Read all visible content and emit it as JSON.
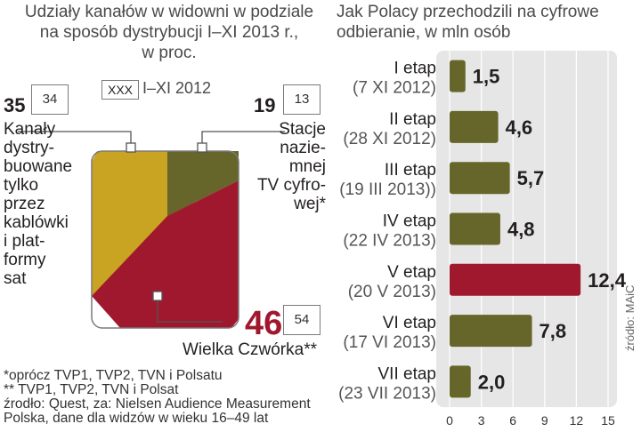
{
  "left_chart": {
    "title_lines": [
      "Udziały kanałów w widowni w podziale",
      "na sposób dystrybucji I–XI 2013 r.,",
      "w proc."
    ],
    "legend_box": "XXX",
    "legend_text": "I–XI 2012",
    "footnotes": [
      "*oprócz TVP1, TVP2, TVN i Polsatu",
      "** TVP1, TVP2, TVN i Polsat",
      "źrodło: Quest, za: Nielsen Audience Measurement",
      "Polska, dane dla widzów w wieku 16–49 lat"
    ]
  },
  "right_chart": {
    "title_lines": [
      "Jak Polacy przechodzili na cyfrowe",
      "odbieranie, w mln osób"
    ],
    "source": "źródło: MAiC"
  },
  "colors": {
    "cable": "#c9a322",
    "terrestrial": "#66652a",
    "big_four": "#a0182e",
    "bar_default": "#66652a",
    "bar_highlight": "#a0182e",
    "panel": "#e6e6e6"
  },
  "chart_data": [
    {
      "type": "pie",
      "slices": [
        {
          "key": "cable",
          "label_lines": [
            "Kanały",
            "dystry-",
            "buowane",
            "tylko",
            "przez",
            "kablówki",
            "i plat-",
            "formy",
            "sat"
          ],
          "value": 35,
          "prev": "34"
        },
        {
          "key": "terrestrial",
          "label_lines": [
            "Stacje",
            "nazie-",
            "mnej",
            "TV cyfro-",
            "wej*"
          ],
          "value": 19,
          "prev": "13"
        },
        {
          "key": "big_four",
          "label_lines": [
            "Wielka Czwórka**"
          ],
          "value": 46,
          "prev": "54"
        }
      ]
    },
    {
      "type": "bar",
      "categories": [
        {
          "name": "I etap",
          "date": "(7 XI 2012)"
        },
        {
          "name": "II etap",
          "date": "(28 XI 2012)"
        },
        {
          "name": "III etap",
          "date": "(19 III 2013))"
        },
        {
          "name": "IV etap",
          "date": "(22 IV 2013)"
        },
        {
          "name": "V etap",
          "date": "(20 V 2013)"
        },
        {
          "name": "VI etap",
          "date": "(17 VI 2013)"
        },
        {
          "name": "VII etap",
          "date": "(23 VII 2013)"
        }
      ],
      "values": [
        1.5,
        4.6,
        5.7,
        4.8,
        12.4,
        7.8,
        2.0
      ],
      "value_labels": [
        "1,5",
        "4,6",
        "5,7",
        "4,8",
        "12,4",
        "7,8",
        "2,0"
      ],
      "highlight_index": 4,
      "xticks": [
        "0",
        "3",
        "6",
        "9",
        "12",
        "15"
      ],
      "xlim": [
        0,
        15
      ]
    }
  ]
}
